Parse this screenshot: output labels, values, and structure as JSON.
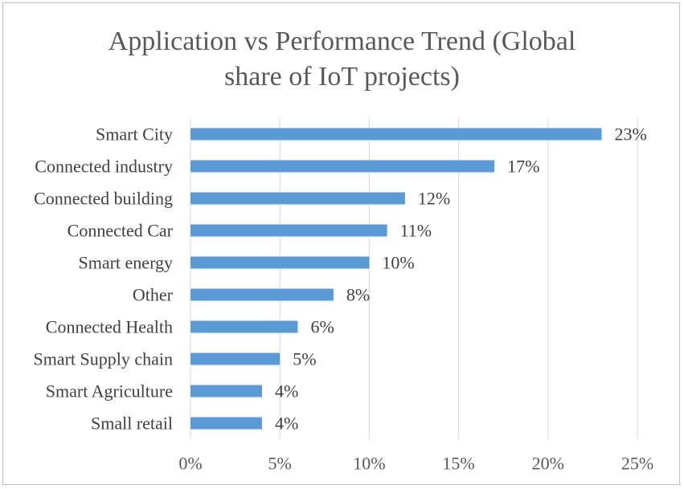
{
  "chart_data": {
    "type": "bar",
    "orientation": "horizontal",
    "title_lines": [
      "Application vs Performance Trend (Global",
      "share of IoT projects)"
    ],
    "categories": [
      "Smart City",
      "Connected industry",
      "Connected building",
      "Connected Car",
      "Smart  energy",
      "Other",
      "Connected Health",
      "Smart Supply chain",
      "Smart Agriculture",
      "Small retail"
    ],
    "values": [
      23,
      17,
      12,
      11,
      10,
      8,
      6,
      5,
      4,
      4
    ],
    "data_labels": [
      "23%",
      "17%",
      "12%",
      "11%",
      "10%",
      "8%",
      "6%",
      "5%",
      "4%",
      "4%"
    ],
    "xlim": [
      0,
      25
    ],
    "x_ticks": [
      0,
      5,
      10,
      15,
      20,
      25
    ],
    "x_tick_labels": [
      "0%",
      "5%",
      "10%",
      "15%",
      "20%",
      "25%"
    ],
    "grid": "vertical",
    "legend": "none",
    "bar_color": "#5b9bd5",
    "grid_color": "#d9d9d9"
  }
}
